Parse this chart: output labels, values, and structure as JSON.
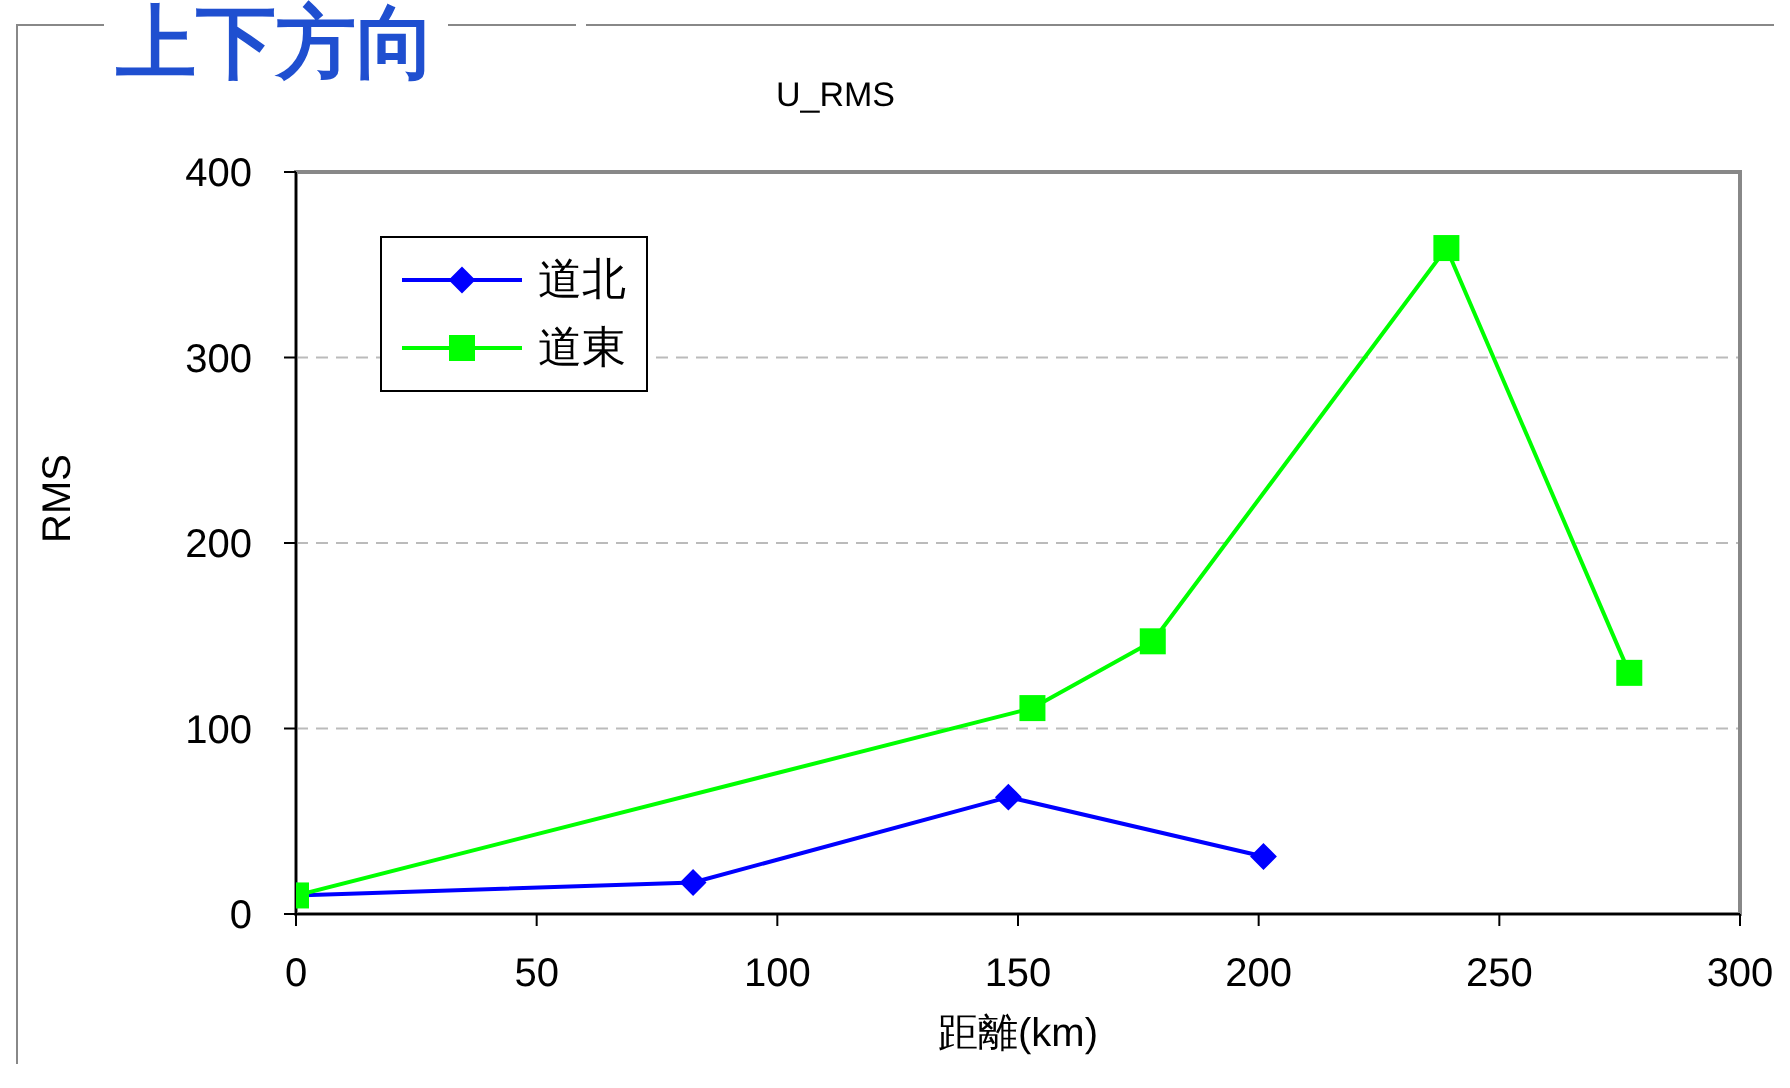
{
  "chart_data": {
    "type": "line",
    "title": "上下方向",
    "subtitle": "U_RMS",
    "xlabel": "距離(km)",
    "ylabel": "RMS",
    "series": [
      {
        "name": "道北",
        "color": "#0000ff",
        "marker": "diamond",
        "x": [
          0,
          82.5,
          148,
          201
        ],
        "values": [
          10,
          17,
          63,
          31
        ]
      },
      {
        "name": "道東",
        "color": "#00ff00",
        "marker": "square",
        "x": [
          0,
          153,
          178,
          239,
          277
        ],
        "values": [
          10,
          111,
          147,
          359,
          130
        ]
      }
    ],
    "xlim": [
      0,
      300
    ],
    "xticks": [
      0,
      50,
      100,
      150,
      200,
      250,
      300
    ],
    "ylim": [
      0,
      400
    ],
    "yticks": [
      0,
      100,
      200,
      300,
      400
    ],
    "grid": "y",
    "legend": "top left",
    "line_style": "solid"
  }
}
